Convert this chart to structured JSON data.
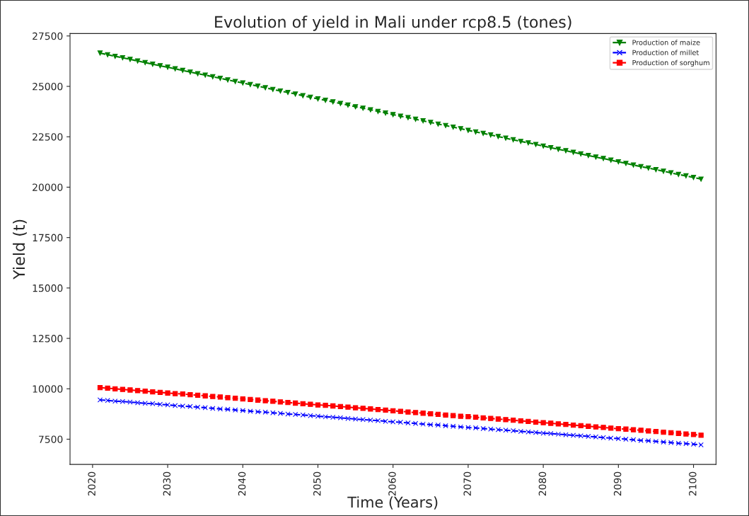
{
  "chart_data": {
    "type": "line",
    "title": "Evolution of yield in Mali under rcp8.5 (tones)",
    "xlabel": "Time (Years)",
    "ylabel": "Yield (t)",
    "x": [
      2021,
      2022,
      2023,
      2024,
      2025,
      2026,
      2027,
      2028,
      2029,
      2030,
      2031,
      2032,
      2033,
      2034,
      2035,
      2036,
      2037,
      2038,
      2039,
      2040,
      2041,
      2042,
      2043,
      2044,
      2045,
      2046,
      2047,
      2048,
      2049,
      2050,
      2051,
      2052,
      2053,
      2054,
      2055,
      2056,
      2057,
      2058,
      2059,
      2060,
      2061,
      2062,
      2063,
      2064,
      2065,
      2066,
      2067,
      2068,
      2069,
      2070,
      2071,
      2072,
      2073,
      2074,
      2075,
      2076,
      2077,
      2078,
      2079,
      2080,
      2081,
      2082,
      2083,
      2084,
      2085,
      2086,
      2087,
      2088,
      2089,
      2090,
      2091,
      2092,
      2093,
      2094,
      2095,
      2096,
      2097,
      2098,
      2099,
      2100,
      2101
    ],
    "series": [
      {
        "name": "Production of maize",
        "color": "#008000",
        "marker": "triangle",
        "values": [
          26650,
          26570,
          26490,
          26420,
          26340,
          26260,
          26180,
          26100,
          26020,
          25950,
          25870,
          25790,
          25710,
          25630,
          25560,
          25480,
          25400,
          25320,
          25240,
          25170,
          25090,
          25010,
          24930,
          24850,
          24770,
          24700,
          24620,
          24540,
          24460,
          24380,
          24310,
          24230,
          24150,
          24070,
          23990,
          23920,
          23840,
          23760,
          23680,
          23600,
          23520,
          23450,
          23370,
          23290,
          23210,
          23130,
          23060,
          22980,
          22900,
          22820,
          22740,
          22670,
          22590,
          22510,
          22430,
          22350,
          22270,
          22200,
          22120,
          22040,
          21960,
          21880,
          21810,
          21730,
          21650,
          21570,
          21490,
          21420,
          21340,
          21260,
          21180,
          21100,
          21020,
          20950,
          20870,
          20790,
          20710,
          20630,
          20560,
          20480,
          20400
        ]
      },
      {
        "name": "Production of millet",
        "color": "#0000ff",
        "marker": "cross",
        "values": [
          9450,
          9420,
          9390,
          9370,
          9340,
          9310,
          9280,
          9260,
          9230,
          9200,
          9170,
          9140,
          9120,
          9090,
          9060,
          9030,
          9000,
          8980,
          8950,
          8920,
          8890,
          8860,
          8840,
          8810,
          8780,
          8750,
          8730,
          8700,
          8670,
          8640,
          8610,
          8590,
          8560,
          8530,
          8500,
          8470,
          8450,
          8420,
          8390,
          8360,
          8340,
          8310,
          8280,
          8250,
          8220,
          8200,
          8170,
          8140,
          8110,
          8080,
          8060,
          8030,
          8000,
          7970,
          7950,
          7920,
          7890,
          7860,
          7830,
          7800,
          7780,
          7750,
          7720,
          7690,
          7670,
          7640,
          7610,
          7580,
          7550,
          7530,
          7500,
          7470,
          7440,
          7420,
          7390,
          7360,
          7330,
          7300,
          7280,
          7250,
          7220
        ]
      },
      {
        "name": "Production of sorghum",
        "color": "#ff0000",
        "marker": "square",
        "values": [
          10060,
          10030,
          10000,
          9970,
          9940,
          9910,
          9880,
          9850,
          9820,
          9790,
          9760,
          9740,
          9710,
          9680,
          9650,
          9620,
          9590,
          9560,
          9530,
          9500,
          9470,
          9440,
          9410,
          9380,
          9350,
          9320,
          9290,
          9260,
          9230,
          9200,
          9180,
          9150,
          9120,
          9090,
          9060,
          9030,
          9000,
          8970,
          8940,
          8910,
          8880,
          8850,
          8820,
          8790,
          8760,
          8730,
          8700,
          8670,
          8640,
          8620,
          8590,
          8560,
          8530,
          8500,
          8470,
          8440,
          8410,
          8380,
          8350,
          8320,
          8290,
          8260,
          8230,
          8200,
          8170,
          8140,
          8110,
          8080,
          8050,
          8020,
          8000,
          7970,
          7940,
          7910,
          7880,
          7850,
          7820,
          7790,
          7760,
          7730,
          7700
        ]
      }
    ],
    "line_style": "dashed",
    "xlim": [
      2017,
      2103
    ],
    "xticks": [
      2020,
      2030,
      2040,
      2050,
      2060,
      2070,
      2080,
      2090,
      2100
    ],
    "ylim": [
      6250,
      27620
    ],
    "yticks": [
      7500,
      10000,
      12500,
      15000,
      17500,
      20000,
      22500,
      25000,
      27500
    ],
    "grid": false,
    "legend": "top right"
  }
}
